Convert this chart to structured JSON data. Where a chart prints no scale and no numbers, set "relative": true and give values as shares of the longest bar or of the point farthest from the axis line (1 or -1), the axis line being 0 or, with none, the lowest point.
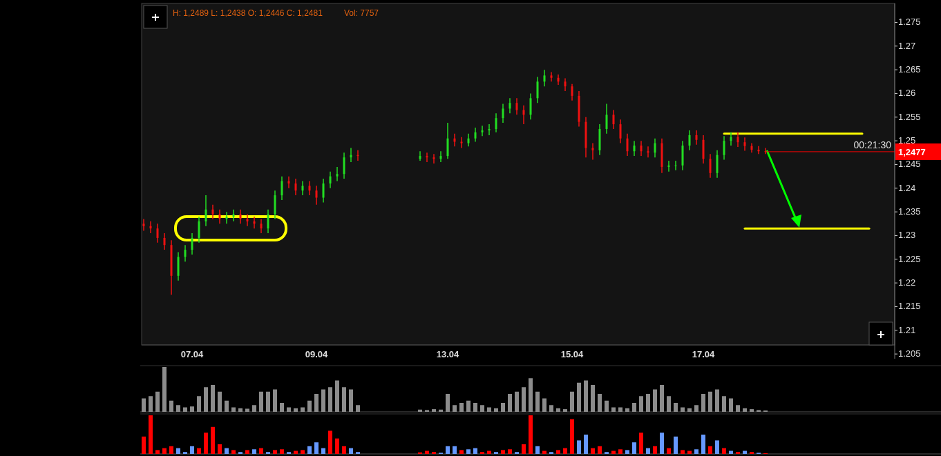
{
  "chart_data": [
    {
      "type": "candlestick",
      "categories": [
        null,
        null,
        null,
        null,
        null,
        null,
        null,
        "07.04",
        null,
        null,
        null,
        null,
        null,
        null,
        null,
        null,
        null,
        null,
        null,
        null,
        null,
        null,
        null,
        null,
        null,
        "09.04",
        null,
        null,
        null,
        null,
        null,
        null,
        null,
        null,
        null,
        null,
        null,
        null,
        null,
        null,
        null,
        null,
        null,
        null,
        "13.04",
        null,
        null,
        null,
        null,
        null,
        null,
        null,
        null,
        null,
        null,
        null,
        null,
        null,
        null,
        null,
        null,
        null,
        "15.04",
        null,
        null,
        null,
        null,
        null,
        null,
        null,
        null,
        null,
        null,
        null,
        null,
        null,
        null,
        null,
        null,
        null,
        null,
        "17.04",
        null,
        null,
        null,
        null,
        null,
        null,
        null,
        null,
        null,
        null,
        null,
        null,
        null,
        null,
        null,
        null,
        null,
        null,
        null,
        null,
        null,
        null,
        null,
        null,
        null,
        null,
        null
      ],
      "ohlc": [
        [
          1.2325,
          1.2335,
          1.231,
          1.232
        ],
        [
          1.232,
          1.233,
          1.2305,
          1.2315
        ],
        [
          1.2315,
          1.2325,
          1.2285,
          1.2295
        ],
        [
          1.2295,
          1.2305,
          1.227,
          1.228
        ],
        [
          1.228,
          1.229,
          1.2175,
          1.2215
        ],
        [
          1.2215,
          1.2265,
          1.2205,
          1.2255
        ],
        [
          1.2255,
          1.228,
          1.2245,
          1.227
        ],
        [
          1.227,
          1.2305,
          1.226,
          1.2295
        ],
        [
          1.2295,
          1.234,
          1.2285,
          1.233
        ],
        [
          1.233,
          1.2385,
          1.232,
          1.2355
        ],
        [
          1.2355,
          1.2365,
          1.2335,
          1.2345
        ],
        [
          1.2345,
          1.2355,
          1.2325,
          1.2335
        ],
        [
          1.2335,
          1.235,
          1.2325,
          1.234
        ],
        [
          1.234,
          1.2355,
          1.233,
          1.2345
        ],
        [
          1.2345,
          1.2355,
          1.2325,
          1.2335
        ],
        [
          1.2335,
          1.2345,
          1.232,
          1.233
        ],
        [
          1.233,
          1.234,
          1.2315,
          1.2325
        ],
        [
          1.2325,
          1.2335,
          1.2305,
          1.2315
        ],
        [
          1.2315,
          1.2355,
          1.2305,
          1.2345
        ],
        [
          1.2345,
          1.2395,
          1.2335,
          1.2385
        ],
        [
          1.2385,
          1.2425,
          1.2375,
          1.2415
        ],
        [
          1.2415,
          1.2425,
          1.24,
          1.241
        ],
        [
          1.241,
          1.242,
          1.2385,
          1.2395
        ],
        [
          1.2395,
          1.2415,
          1.2385,
          1.2405
        ],
        [
          1.2405,
          1.2415,
          1.2385,
          1.2395
        ],
        [
          1.2395,
          1.2405,
          1.2365,
          1.238
        ],
        [
          1.238,
          1.242,
          1.237,
          1.241
        ],
        [
          1.241,
          1.2435,
          1.24,
          1.2425
        ],
        [
          1.2425,
          1.2445,
          1.2415,
          1.243
        ],
        [
          1.243,
          1.2475,
          1.242,
          1.2465
        ],
        [
          1.2465,
          1.2485,
          1.2455,
          1.247
        ],
        [
          1.247,
          1.248,
          1.2458,
          1.2468
        ],
        null,
        null,
        null,
        null,
        null,
        null,
        null,
        null,
        [
          1.2462,
          1.2478,
          1.2458,
          1.2468
        ],
        [
          1.2468,
          1.2475,
          1.2455,
          1.2465
        ],
        [
          1.2465,
          1.2472,
          1.2452,
          1.2462
        ],
        [
          1.2462,
          1.2478,
          1.2455,
          1.2468
        ],
        [
          1.2468,
          1.2538,
          1.2462,
          1.2505
        ],
        [
          1.2505,
          1.2515,
          1.2488,
          1.2498
        ],
        [
          1.2498,
          1.2508,
          1.2485,
          1.2495
        ],
        [
          1.2495,
          1.2515,
          1.2488,
          1.2505
        ],
        [
          1.2505,
          1.2528,
          1.2498,
          1.2518
        ],
        [
          1.2518,
          1.2532,
          1.251,
          1.2522
        ],
        [
          1.2522,
          1.2535,
          1.2512,
          1.2525
        ],
        [
          1.2525,
          1.2558,
          1.2518,
          1.2548
        ],
        [
          1.2548,
          1.2578,
          1.2538,
          1.2568
        ],
        [
          1.2568,
          1.259,
          1.2558,
          1.258
        ],
        [
          1.258,
          1.259,
          1.2555,
          1.2565
        ],
        [
          1.2565,
          1.2575,
          1.2535,
          1.2555
        ],
        [
          1.2555,
          1.26,
          1.2545,
          1.259
        ],
        [
          1.259,
          1.2635,
          1.258,
          1.2625
        ],
        [
          1.2625,
          1.265,
          1.2615,
          1.2638
        ],
        [
          1.2638,
          1.2645,
          1.2625,
          1.2633
        ],
        [
          1.2633,
          1.264,
          1.2618,
          1.2625
        ],
        [
          1.2625,
          1.2632,
          1.2605,
          1.2615
        ],
        [
          1.2615,
          1.262,
          1.2585,
          1.2595
        ],
        [
          1.2595,
          1.2605,
          1.253,
          1.254
        ],
        [
          1.254,
          1.255,
          1.2465,
          1.2485
        ],
        [
          1.2485,
          1.2495,
          1.246,
          1.248
        ],
        [
          1.248,
          1.2535,
          1.247,
          1.2525
        ],
        [
          1.2525,
          1.2578,
          1.2515,
          1.2555
        ],
        [
          1.2555,
          1.2565,
          1.2525,
          1.2535
        ],
        [
          1.2535,
          1.2545,
          1.2495,
          1.2505
        ],
        [
          1.2505,
          1.2515,
          1.2468,
          1.2478
        ],
        [
          1.2478,
          1.25,
          1.2468,
          1.249
        ],
        [
          1.249,
          1.25,
          1.2468,
          1.2478
        ],
        [
          1.2478,
          1.2488,
          1.2465,
          1.2475
        ],
        [
          1.2475,
          1.2505,
          1.2465,
          1.2495
        ],
        [
          1.2495,
          1.2505,
          1.2432,
          1.2445
        ],
        [
          1.2445,
          1.2458,
          1.2435,
          1.2448
        ],
        [
          1.2448,
          1.2458,
          1.2438,
          1.2448
        ],
        [
          1.2448,
          1.25,
          1.2438,
          1.249
        ],
        [
          1.249,
          1.2522,
          1.248,
          1.2512
        ],
        [
          1.2512,
          1.2522,
          1.2492,
          1.2502
        ],
        [
          1.2502,
          1.2512,
          1.2452,
          1.2462
        ],
        [
          1.2462,
          1.2472,
          1.2422,
          1.2432
        ],
        [
          1.2432,
          1.248,
          1.2422,
          1.247
        ],
        [
          1.247,
          1.251,
          1.246,
          1.25
        ],
        [
          1.25,
          1.2518,
          1.249,
          1.2508
        ],
        [
          1.2508,
          1.2518,
          1.2487,
          1.2497
        ],
        [
          1.2497,
          1.2507,
          1.2479,
          1.2489
        ],
        [
          1.2489,
          1.2495,
          1.2475,
          1.2481
        ],
        [
          1.2481,
          1.2489,
          1.2472,
          1.2478
        ],
        [
          1.2478,
          1.2485,
          1.2472,
          1.2477
        ],
        null,
        null,
        null,
        null,
        null,
        null,
        null,
        null,
        null,
        null,
        null,
        null,
        null,
        null,
        null,
        null,
        null,
        null
      ],
      "series": [
        {
          "type": "line",
          "color": "#ffff00",
          "values": [
            null,
            null,
            null,
            null,
            null,
            null,
            null,
            null,
            null,
            null,
            null,
            null,
            null,
            null,
            null,
            null,
            null,
            null,
            null,
            null,
            null,
            null,
            null,
            null,
            null,
            null,
            null,
            null,
            null,
            null,
            null,
            null,
            null,
            null,
            null,
            null,
            null,
            null,
            null,
            null,
            null,
            null,
            null,
            null,
            null,
            null,
            null,
            null,
            null,
            null,
            null,
            null,
            null,
            null,
            null,
            null,
            null,
            null,
            null,
            null,
            null,
            null,
            null,
            null,
            null,
            null,
            null,
            null,
            null,
            null,
            null,
            null,
            null,
            null,
            null,
            null,
            null,
            null,
            null,
            null,
            null,
            null,
            null,
            null,
            1.2515,
            1.2515,
            1.2515,
            1.2515,
            1.2515,
            1.2515,
            1.2515,
            1.2515,
            1.2515,
            1.2515,
            1.2515,
            1.2515,
            1.2515,
            1.2515,
            1.2515,
            1.2515,
            1.2515,
            1.2515,
            1.2515,
            1.2515,
            1.2515,
            null,
            null,
            null,
            null
          ]
        },
        {
          "type": "line",
          "color": "#ffff00",
          "values": [
            null,
            null,
            null,
            null,
            null,
            null,
            null,
            null,
            null,
            null,
            null,
            null,
            null,
            null,
            null,
            null,
            null,
            null,
            null,
            null,
            null,
            null,
            null,
            null,
            null,
            null,
            null,
            null,
            null,
            null,
            null,
            null,
            null,
            null,
            null,
            null,
            null,
            null,
            null,
            null,
            null,
            null,
            null,
            null,
            null,
            null,
            null,
            null,
            null,
            null,
            null,
            null,
            null,
            null,
            null,
            null,
            null,
            null,
            null,
            null,
            null,
            null,
            null,
            null,
            null,
            null,
            null,
            null,
            null,
            null,
            null,
            null,
            null,
            null,
            null,
            null,
            null,
            null,
            null,
            null,
            null,
            null,
            null,
            null,
            null,
            null,
            null,
            1.2315,
            1.2315,
            1.2315,
            1.2315,
            1.2315,
            1.2315,
            1.2315,
            1.2315,
            1.2315,
            1.2315,
            1.2315,
            1.2315,
            1.2315,
            1.2315,
            1.2315,
            1.2315,
            1.2315,
            1.2315,
            1.2315,
            null,
            null,
            null
          ]
        }
      ],
      "ylim": [
        1.204,
        1.279
      ],
      "yticks": [
        1.205,
        1.21,
        1.215,
        1.22,
        1.225,
        1.23,
        1.235,
        1.24,
        1.245,
        1.25,
        1.255,
        1.26,
        1.265,
        1.27,
        1.275
      ],
      "ref_lines": [
        {
          "axis": "y",
          "value": 1.2477,
          "label": "1,2477",
          "color": "#ff0000"
        }
      ],
      "annotations": [
        "H: 1,2489 L: 1,2438 O: 1,2446 C: 1,2481",
        "Vol: 7757",
        "00:21:30"
      ]
    },
    {
      "type": "bar",
      "relative": true,
      "color": "#8c8c8c",
      "categories": [
        null,
        null,
        null,
        null,
        null,
        null,
        null,
        null,
        null,
        null,
        null,
        null,
        null,
        null,
        null,
        null,
        null,
        null,
        null,
        null,
        null,
        null,
        null,
        null,
        null,
        null,
        null,
        null,
        null,
        null,
        null,
        null,
        null,
        null,
        null,
        null,
        null,
        null,
        null,
        null,
        null,
        null,
        null,
        null,
        null,
        null,
        null,
        null,
        null,
        null,
        null,
        null,
        null,
        null,
        null,
        null,
        null,
        null,
        null,
        null,
        null,
        null,
        null,
        null,
        null,
        null,
        null,
        null,
        null,
        null,
        null,
        null,
        null,
        null,
        null,
        null,
        null,
        null,
        null,
        null,
        null,
        null,
        null,
        null,
        null,
        null,
        null,
        null,
        null,
        null,
        null,
        null,
        null,
        null,
        null,
        null,
        null,
        null,
        null,
        null,
        null,
        null,
        null,
        null,
        null,
        null,
        null,
        null,
        null
      ],
      "values": [
        0.3,
        0.35,
        0.45,
        1.0,
        0.25,
        0.15,
        0.1,
        0.12,
        0.35,
        0.55,
        0.6,
        0.45,
        0.25,
        0.1,
        0.08,
        0.07,
        0.15,
        0.45,
        0.45,
        0.5,
        0.2,
        0.1,
        0.08,
        0.1,
        0.25,
        0.4,
        0.5,
        0.55,
        0.7,
        0.55,
        0.5,
        0.15,
        null,
        null,
        null,
        null,
        null,
        null,
        null,
        null,
        0.05,
        0.04,
        0.06,
        0.05,
        0.4,
        0.15,
        0.2,
        0.25,
        0.2,
        0.15,
        0.1,
        0.08,
        0.2,
        0.4,
        0.45,
        0.55,
        0.75,
        0.45,
        0.3,
        0.15,
        0.08,
        0.06,
        0.45,
        0.65,
        0.7,
        0.6,
        0.4,
        0.25,
        0.1,
        0.1,
        0.08,
        0.2,
        0.35,
        0.4,
        0.5,
        0.6,
        0.35,
        0.2,
        0.1,
        0.08,
        0.15,
        0.4,
        0.45,
        0.5,
        0.35,
        0.3,
        0.15,
        0.08,
        0.06,
        0.04,
        0.03,
        null,
        null,
        null,
        null,
        null,
        null,
        null,
        null,
        null,
        null,
        null,
        null,
        null,
        null,
        null,
        null,
        null,
        null
      ]
    },
    {
      "type": "bar",
      "relative": true,
      "categories": [
        null,
        null,
        null,
        null,
        null,
        null,
        null,
        null,
        null,
        null,
        null,
        null,
        null,
        null,
        null,
        null,
        null,
        null,
        null,
        null,
        null,
        null,
        null,
        null,
        null,
        null,
        null,
        null,
        null,
        null,
        null,
        null,
        null,
        null,
        null,
        null,
        null,
        null,
        null,
        null,
        null,
        null,
        null,
        null,
        null,
        null,
        null,
        null,
        null,
        null,
        null,
        null,
        null,
        null,
        null,
        null,
        null,
        null,
        null,
        null,
        null,
        null,
        null,
        null,
        null,
        null,
        null,
        null,
        null,
        null,
        null,
        null,
        null,
        null,
        null,
        null,
        null,
        null,
        null,
        null,
        null,
        null,
        null,
        null,
        null,
        null,
        null,
        null,
        null,
        null,
        null,
        null,
        null,
        null,
        null,
        null,
        null,
        null,
        null,
        null,
        null,
        null,
        null,
        null,
        null,
        null,
        null,
        null,
        null
      ],
      "values": [
        0.45,
        1.0,
        0.1,
        0.15,
        0.2,
        0.15,
        0.05,
        0.2,
        0.15,
        0.55,
        0.7,
        0.25,
        0.15,
        0.1,
        0.05,
        0.1,
        0.12,
        0.15,
        0.05,
        0.1,
        0.12,
        0.05,
        0.08,
        0.1,
        0.2,
        0.3,
        0.15,
        0.6,
        0.4,
        0.2,
        0.15,
        0.05,
        null,
        null,
        null,
        null,
        null,
        null,
        null,
        null,
        0.04,
        0.08,
        0.05,
        0.03,
        0.2,
        0.2,
        0.1,
        0.12,
        0.15,
        0.05,
        0.08,
        0.05,
        0.1,
        0.12,
        0.05,
        0.25,
        1.0,
        0.2,
        0.08,
        0.05,
        0.1,
        0.15,
        0.9,
        0.35,
        0.5,
        0.15,
        0.2,
        0.05,
        0.08,
        0.12,
        0.1,
        0.3,
        0.55,
        0.15,
        0.2,
        0.55,
        0.15,
        0.45,
        0.1,
        0.08,
        0.12,
        0.5,
        0.2,
        0.35,
        0.15,
        0.08,
        0.05,
        0.08,
        0.05,
        0.03,
        0.02,
        null,
        null,
        null,
        null,
        null,
        null,
        null,
        null,
        null,
        null,
        null,
        null,
        null,
        null,
        null,
        null,
        null,
        null
      ],
      "colors": [
        "#ff0000",
        "#ff0000",
        "#ff0000",
        "#ff0000",
        "#ff0000",
        "#6699ff",
        "#6699ff",
        "#6699ff",
        "#ff0000",
        "#ff0000",
        "#ff0000",
        "#ff0000",
        "#6699ff",
        "#ff0000",
        "#6699ff",
        "#ff0000",
        "#6699ff",
        "#ff0000",
        "#6699ff",
        "#ff0000",
        "#ff0000",
        "#6699ff",
        "#ff0000",
        "#ff0000",
        "#6699ff",
        "#6699ff",
        "#6699ff",
        "#ff0000",
        "#ff0000",
        "#ff0000",
        "#6699ff",
        "#6699ff",
        null,
        null,
        null,
        null,
        null,
        null,
        null,
        null,
        "#ff0000",
        "#ff0000",
        "#ff0000",
        "#6699ff",
        "#6699ff",
        "#6699ff",
        "#ff0000",
        "#6699ff",
        "#6699ff",
        "#ff0000",
        "#ff0000",
        "#6699ff",
        "#ff0000",
        "#ff0000",
        "#6699ff",
        "#ff0000",
        "#ff0000",
        "#6699ff",
        "#ff0000",
        "#6699ff",
        "#ff0000",
        "#ff0000",
        "#ff0000",
        "#6699ff",
        "#6699ff",
        "#ff0000",
        "#ff0000",
        "#6699ff",
        "#ff0000",
        "#ff0000",
        "#6699ff",
        "#6699ff",
        "#ff0000",
        "#6699ff",
        "#ff0000",
        "#6699ff",
        "#ff0000",
        "#6699ff",
        "#ff0000",
        "#ff0000",
        "#6699ff",
        "#6699ff",
        "#ff0000",
        "#6699ff",
        "#ff0000",
        "#6699ff",
        "#ff0000",
        "#6699ff",
        "#ff0000",
        "#6699ff",
        "#ff0000",
        null,
        null,
        null,
        null,
        null,
        null,
        null,
        null,
        null,
        null,
        null,
        null,
        null,
        null,
        null,
        null,
        null,
        null
      ]
    }
  ]
}
